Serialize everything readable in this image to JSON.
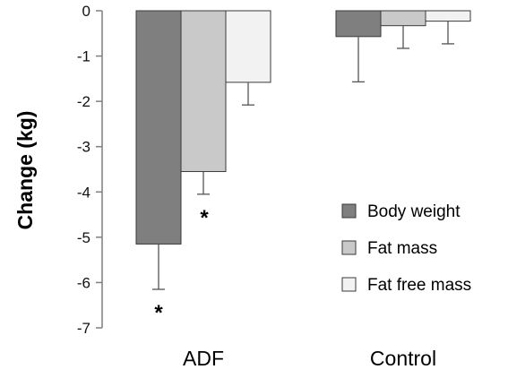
{
  "chart_data": {
    "type": "bar",
    "title": "",
    "xlabel": "",
    "ylabel": "Change (kg)",
    "ylim": [
      -7,
      0
    ],
    "yticks": [
      0,
      -1,
      -2,
      -3,
      -4,
      -5,
      -6,
      -7
    ],
    "categories": [
      "ADF",
      "Control"
    ],
    "grid": false,
    "legend_position": "right",
    "series": [
      {
        "name": "Body weight",
        "color": "#7f7f7f",
        "values": [
          -5.15,
          -0.57
        ],
        "errors": [
          1.0,
          1.0
        ],
        "significance": [
          "*",
          ""
        ]
      },
      {
        "name": "Fat mass",
        "color": "#c9c9c9",
        "values": [
          -3.55,
          -0.33
        ],
        "errors": [
          0.5,
          0.5
        ],
        "significance": [
          "*",
          ""
        ]
      },
      {
        "name": "Fat free mass",
        "color": "#f2f2f2",
        "values": [
          -1.58,
          -0.23
        ],
        "errors": [
          0.5,
          0.5
        ],
        "significance": [
          "",
          ""
        ]
      }
    ]
  }
}
